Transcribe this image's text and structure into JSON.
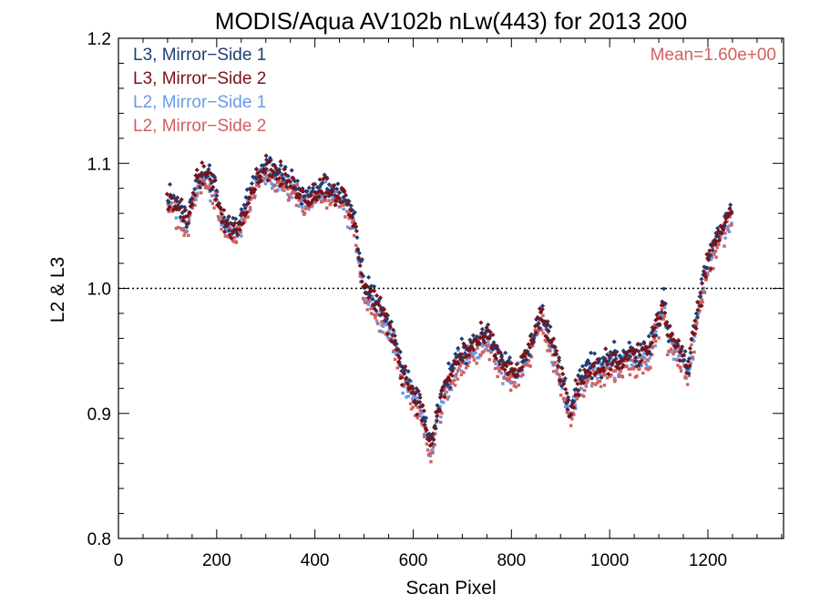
{
  "chart_data": {
    "type": "scatter",
    "title": "MODIS/Aqua AV102b nLw(443) for 2013 200",
    "xlabel": "Scan Pixel",
    "ylabel": "L2 & L3",
    "xlim": [
      0,
      1354
    ],
    "ylim": [
      0.8,
      1.2
    ],
    "x_ticks": [
      0,
      200,
      400,
      600,
      800,
      1000,
      1200
    ],
    "y_ticks": [
      0.8,
      0.9,
      1.0,
      1.1,
      1.2
    ],
    "y_tick_labels": [
      "0.8",
      "0.9",
      "1.0",
      "1.1",
      "1.2"
    ],
    "x_tick_labels": [
      "0",
      "200",
      "400",
      "600",
      "800",
      "1000",
      "1200"
    ],
    "reference_line": {
      "y": 1.0,
      "style": "dotted"
    },
    "annotation": {
      "text": "Mean=1.60e+00",
      "color": "#d35f5f",
      "placement": "top-right"
    },
    "legend_placement": "top-left",
    "x_range_of_data": [
      100,
      1250
    ],
    "profile": [
      [
        100,
        1.07
      ],
      [
        120,
        1.065
      ],
      [
        140,
        1.05
      ],
      [
        150,
        1.07
      ],
      [
        160,
        1.085
      ],
      [
        180,
        1.09
      ],
      [
        200,
        1.075
      ],
      [
        210,
        1.055
      ],
      [
        220,
        1.05
      ],
      [
        240,
        1.045
      ],
      [
        260,
        1.065
      ],
      [
        280,
        1.085
      ],
      [
        300,
        1.095
      ],
      [
        320,
        1.09
      ],
      [
        340,
        1.085
      ],
      [
        360,
        1.08
      ],
      [
        380,
        1.07
      ],
      [
        400,
        1.075
      ],
      [
        420,
        1.08
      ],
      [
        440,
        1.075
      ],
      [
        460,
        1.07
      ],
      [
        480,
        1.05
      ],
      [
        500,
        1.0
      ],
      [
        520,
        0.99
      ],
      [
        540,
        0.975
      ],
      [
        560,
        0.96
      ],
      [
        580,
        0.93
      ],
      [
        600,
        0.915
      ],
      [
        620,
        0.9
      ],
      [
        635,
        0.87
      ],
      [
        650,
        0.9
      ],
      [
        670,
        0.925
      ],
      [
        690,
        0.94
      ],
      [
        710,
        0.95
      ],
      [
        730,
        0.955
      ],
      [
        750,
        0.96
      ],
      [
        770,
        0.945
      ],
      [
        790,
        0.935
      ],
      [
        810,
        0.93
      ],
      [
        830,
        0.945
      ],
      [
        850,
        0.965
      ],
      [
        860,
        0.98
      ],
      [
        880,
        0.955
      ],
      [
        900,
        0.93
      ],
      [
        920,
        0.9
      ],
      [
        940,
        0.925
      ],
      [
        960,
        0.935
      ],
      [
        980,
        0.935
      ],
      [
        1000,
        0.94
      ],
      [
        1020,
        0.94
      ],
      [
        1040,
        0.945
      ],
      [
        1060,
        0.945
      ],
      [
        1080,
        0.95
      ],
      [
        1100,
        0.975
      ],
      [
        1110,
        0.985
      ],
      [
        1120,
        0.96
      ],
      [
        1140,
        0.95
      ],
      [
        1160,
        0.935
      ],
      [
        1175,
        0.97
      ],
      [
        1190,
        1.0
      ],
      [
        1200,
        1.02
      ],
      [
        1220,
        1.04
      ],
      [
        1240,
        1.055
      ],
      [
        1250,
        1.06
      ]
    ],
    "series": [
      {
        "name": "L3, Mirror−Side 1",
        "color": "#1f3e73",
        "offset": 0.004
      },
      {
        "name": "L3, Mirror−Side 2",
        "color": "#7a1218",
        "offset": 0.002
      },
      {
        "name": "L2, Mirror−Side 1",
        "color": "#6a9ae6",
        "offset": -0.003
      },
      {
        "name": "L2, Mirror−Side 2",
        "color": "#d06060",
        "offset": -0.006
      }
    ]
  }
}
